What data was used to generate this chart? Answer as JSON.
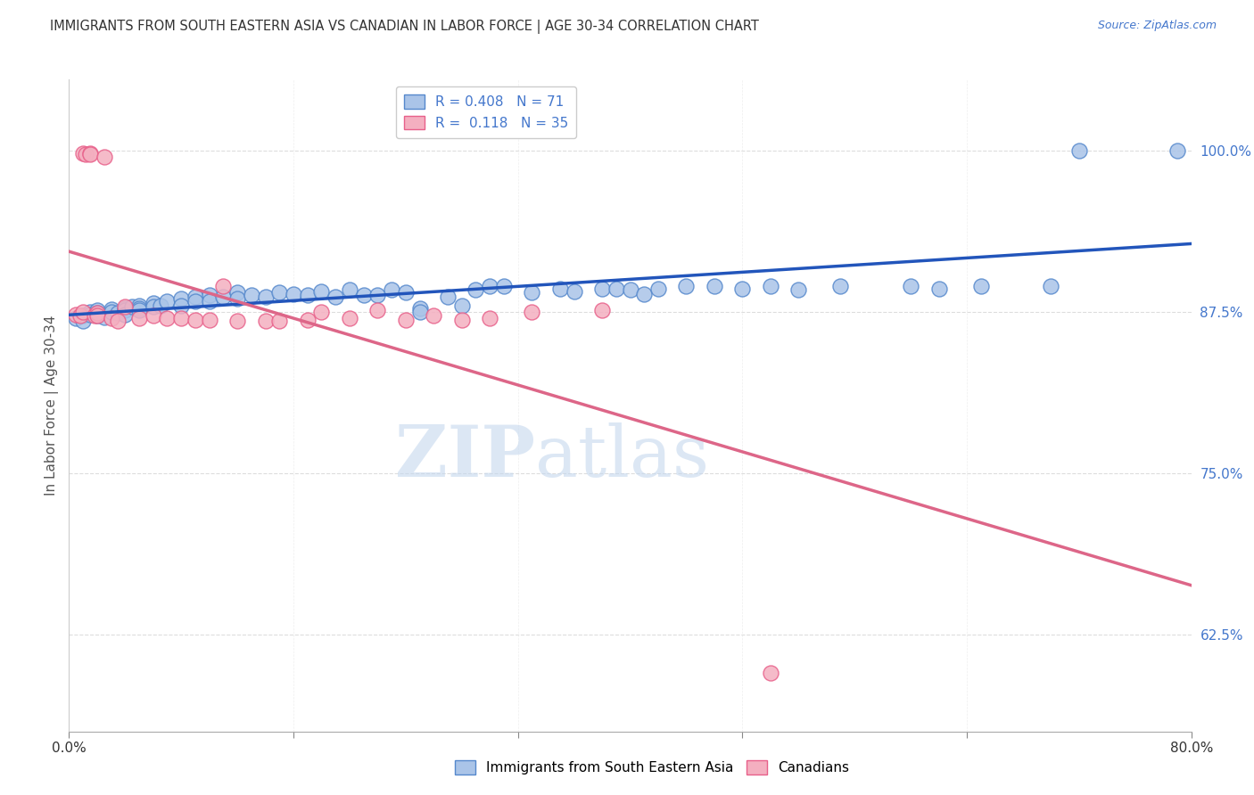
{
  "title": "IMMIGRANTS FROM SOUTH EASTERN ASIA VS CANADIAN IN LABOR FORCE | AGE 30-34 CORRELATION CHART",
  "source": "Source: ZipAtlas.com",
  "ylabel": "In Labor Force | Age 30-34",
  "y_tick_labels": [
    "62.5%",
    "75.0%",
    "87.5%",
    "100.0%"
  ],
  "y_tick_values": [
    0.625,
    0.75,
    0.875,
    1.0
  ],
  "xlim": [
    0.0,
    0.8
  ],
  "ylim": [
    0.55,
    1.055
  ],
  "legend_blue_label": "Immigrants from South Eastern Asia",
  "legend_pink_label": "Canadians",
  "R_blue": 0.408,
  "N_blue": 71,
  "R_pink": 0.118,
  "N_pink": 35,
  "blue_color": "#aac4e8",
  "pink_color": "#f4afc0",
  "blue_edge_color": "#5588cc",
  "pink_edge_color": "#e8608a",
  "blue_line_color": "#2255bb",
  "pink_line_color": "#dd6688",
  "watermark_zip": "ZIP",
  "watermark_atlas": "atlas",
  "blue_x": [
    0.005,
    0.01,
    0.01,
    0.015,
    0.015,
    0.02,
    0.02,
    0.02,
    0.025,
    0.03,
    0.03,
    0.035,
    0.04,
    0.04,
    0.04,
    0.045,
    0.05,
    0.05,
    0.05,
    0.06,
    0.06,
    0.065,
    0.07,
    0.08,
    0.08,
    0.09,
    0.09,
    0.1,
    0.1,
    0.11,
    0.12,
    0.12,
    0.13,
    0.14,
    0.15,
    0.16,
    0.17,
    0.18,
    0.19,
    0.2,
    0.21,
    0.22,
    0.23,
    0.24,
    0.25,
    0.25,
    0.27,
    0.28,
    0.29,
    0.3,
    0.31,
    0.33,
    0.35,
    0.36,
    0.38,
    0.39,
    0.4,
    0.41,
    0.42,
    0.44,
    0.46,
    0.48,
    0.5,
    0.52,
    0.55,
    0.6,
    0.62,
    0.65,
    0.7,
    0.72,
    0.79
  ],
  "blue_y": [
    0.87,
    0.872,
    0.868,
    0.875,
    0.873,
    0.876,
    0.874,
    0.872,
    0.871,
    0.877,
    0.875,
    0.874,
    0.878,
    0.876,
    0.873,
    0.879,
    0.88,
    0.878,
    0.876,
    0.882,
    0.879,
    0.88,
    0.883,
    0.885,
    0.88,
    0.887,
    0.883,
    0.888,
    0.883,
    0.887,
    0.89,
    0.885,
    0.888,
    0.887,
    0.89,
    0.889,
    0.888,
    0.891,
    0.887,
    0.892,
    0.888,
    0.888,
    0.892,
    0.89,
    0.878,
    0.875,
    0.887,
    0.88,
    0.892,
    0.895,
    0.895,
    0.89,
    0.893,
    0.891,
    0.893,
    0.893,
    0.892,
    0.889,
    0.893,
    0.895,
    0.895,
    0.893,
    0.895,
    0.892,
    0.895,
    0.895,
    0.893,
    0.895,
    0.895,
    1.0,
    1.0
  ],
  "pink_x": [
    0.005,
    0.008,
    0.01,
    0.01,
    0.012,
    0.015,
    0.015,
    0.018,
    0.02,
    0.02,
    0.025,
    0.03,
    0.035,
    0.04,
    0.05,
    0.06,
    0.07,
    0.08,
    0.09,
    0.1,
    0.11,
    0.12,
    0.14,
    0.15,
    0.17,
    0.18,
    0.2,
    0.22,
    0.24,
    0.26,
    0.28,
    0.3,
    0.33,
    0.38,
    0.5
  ],
  "pink_y": [
    0.873,
    0.872,
    0.875,
    0.998,
    0.997,
    0.998,
    0.997,
    0.872,
    0.874,
    0.872,
    0.995,
    0.87,
    0.868,
    0.879,
    0.87,
    0.872,
    0.87,
    0.87,
    0.869,
    0.869,
    0.895,
    0.868,
    0.868,
    0.868,
    0.869,
    0.875,
    0.87,
    0.876,
    0.869,
    0.872,
    0.869,
    0.87,
    0.875,
    0.876,
    0.595
  ]
}
